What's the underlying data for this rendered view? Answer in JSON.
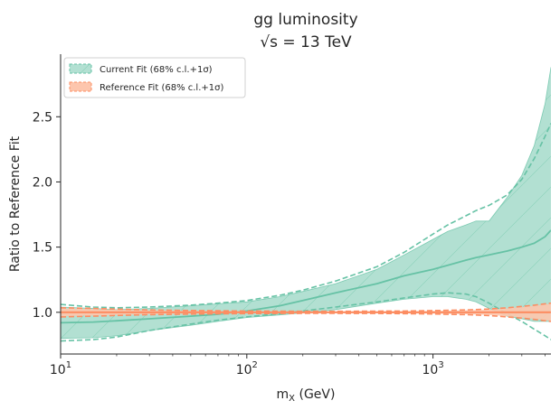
{
  "chart_data": {
    "type": "area",
    "title": "gg luminosity",
    "subtitle": "√s = 13 TeV",
    "xlabel": "m_X (GeV)",
    "ylabel": "Ratio to Reference Fit",
    "x_scale": "log",
    "xlim": [
      10,
      4300
    ],
    "ylim": [
      0.68,
      2.98
    ],
    "x_ticks": [
      {
        "value": 10,
        "base": "10",
        "exp": "1"
      },
      {
        "value": 100,
        "base": "10",
        "exp": "2"
      },
      {
        "value": 1000,
        "base": "10",
        "exp": "3"
      }
    ],
    "y_ticks": [
      {
        "value": 1.0,
        "label": "1.0"
      },
      {
        "value": 1.5,
        "label": "1.5"
      },
      {
        "value": 2.0,
        "label": "2.0"
      },
      {
        "value": 2.5,
        "label": "2.5"
      }
    ],
    "grid": false,
    "legend_position": "top-left",
    "series": [
      {
        "name": "Current Fit (68% c.l.+1σ)",
        "color": "#66c2a5",
        "fill": "#b2e0d2",
        "x": [
          10,
          15,
          20,
          30,
          50,
          70,
          100,
          150,
          200,
          300,
          500,
          700,
          1000,
          1200,
          1500,
          1700,
          2000,
          2500,
          3000,
          3500,
          4000,
          4300
        ],
        "central": [
          0.92,
          0.925,
          0.935,
          0.95,
          0.97,
          0.985,
          1.01,
          1.05,
          1.09,
          1.15,
          1.22,
          1.28,
          1.33,
          1.36,
          1.4,
          1.42,
          1.44,
          1.47,
          1.5,
          1.53,
          1.58,
          1.63
        ],
        "band_upper": [
          1.04,
          1.03,
          1.02,
          1.03,
          1.05,
          1.065,
          1.08,
          1.12,
          1.16,
          1.22,
          1.33,
          1.44,
          1.56,
          1.62,
          1.67,
          1.7,
          1.7,
          1.88,
          2.05,
          2.28,
          2.6,
          2.88
        ],
        "band_lower": [
          0.8,
          0.805,
          0.82,
          0.86,
          0.9,
          0.93,
          0.96,
          0.98,
          0.995,
          1.02,
          1.07,
          1.1,
          1.12,
          1.12,
          1.1,
          1.08,
          1.03,
          0.97,
          0.95,
          0.93,
          0.93,
          0.93
        ],
        "sigma_upper": [
          1.06,
          1.04,
          1.035,
          1.04,
          1.055,
          1.07,
          1.09,
          1.13,
          1.17,
          1.24,
          1.35,
          1.46,
          1.6,
          1.67,
          1.74,
          1.78,
          1.82,
          1.9,
          2.02,
          2.18,
          2.35,
          2.45
        ],
        "sigma_lower": [
          0.78,
          0.79,
          0.81,
          0.86,
          0.91,
          0.94,
          0.965,
          0.99,
          1.01,
          1.04,
          1.08,
          1.11,
          1.14,
          1.15,
          1.14,
          1.12,
          1.07,
          0.99,
          0.93,
          0.87,
          0.82,
          0.79
        ]
      },
      {
        "name": "Reference Fit (68% c.l.+1σ)",
        "color": "#fc8d62",
        "fill": "#fdc6ad",
        "x": [
          10,
          15,
          20,
          30,
          50,
          70,
          100,
          150,
          200,
          300,
          500,
          700,
          1000,
          1500,
          2000,
          2500,
          3000,
          3500,
          4000,
          4300
        ],
        "central": [
          1.0,
          1.0,
          1.0,
          1.0,
          1.0,
          1.0,
          1.0,
          1.0,
          1.0,
          1.0,
          1.0,
          1.0,
          1.0,
          1.0,
          1.0,
          1.0,
          1.0,
          1.0,
          1.0,
          1.0
        ],
        "band_upper": [
          1.03,
          1.025,
          1.02,
          1.015,
          1.012,
          1.01,
          1.008,
          1.007,
          1.006,
          1.006,
          1.007,
          1.008,
          1.01,
          1.015,
          1.02,
          1.03,
          1.04,
          1.05,
          1.06,
          1.065
        ],
        "band_lower": [
          0.97,
          0.975,
          0.98,
          0.985,
          0.988,
          0.99,
          0.992,
          0.993,
          0.994,
          0.994,
          0.993,
          0.992,
          0.99,
          0.985,
          0.98,
          0.97,
          0.96,
          0.95,
          0.94,
          0.935
        ],
        "sigma_upper": [
          1.035,
          1.03,
          1.024,
          1.018,
          1.014,
          1.012,
          1.01,
          1.009,
          1.008,
          1.008,
          1.009,
          1.01,
          1.013,
          1.018,
          1.025,
          1.035,
          1.045,
          1.055,
          1.065,
          1.07
        ],
        "sigma_lower": [
          0.965,
          0.97,
          0.976,
          0.982,
          0.986,
          0.988,
          0.99,
          0.991,
          0.992,
          0.992,
          0.991,
          0.99,
          0.987,
          0.982,
          0.975,
          0.965,
          0.955,
          0.945,
          0.935,
          0.93
        ]
      }
    ]
  }
}
